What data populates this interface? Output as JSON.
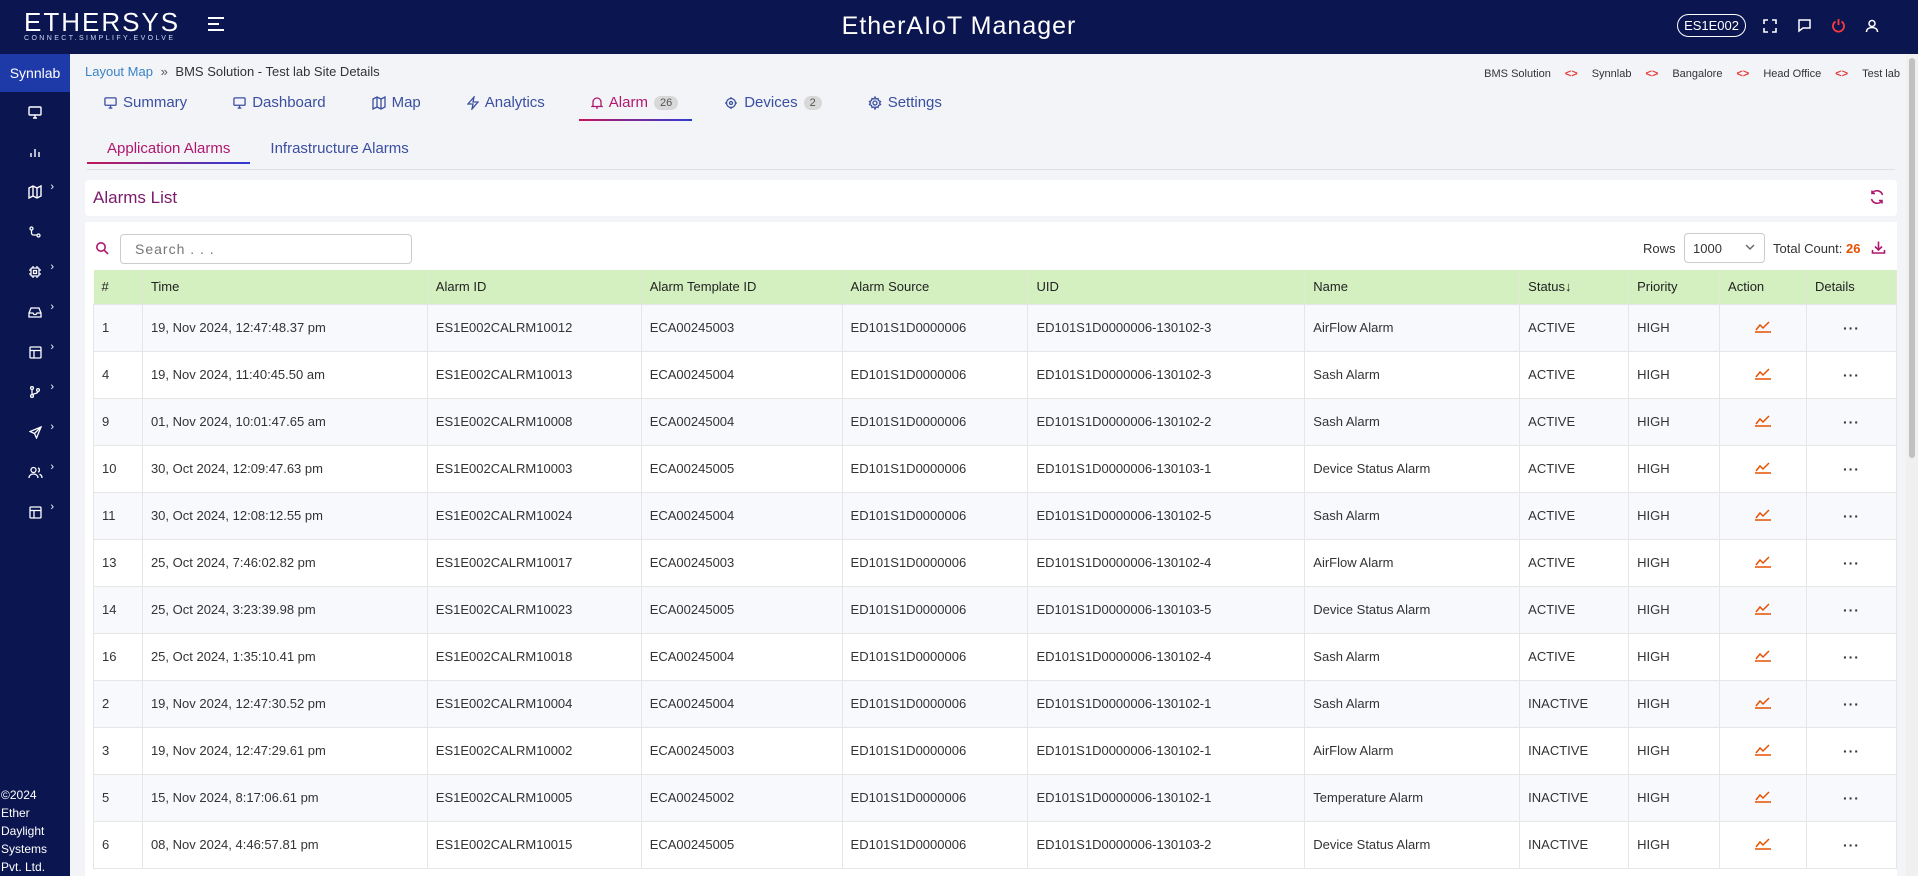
{
  "header": {
    "brand": "ETHERSYS",
    "tagline": "CONNECT.SIMPLIFY.EVOLVE",
    "app_title": "EtherAIoT Manager",
    "device": "ES1E002"
  },
  "sidebar": {
    "site": "Synnlab",
    "copyright_lines": [
      "©2024",
      "Ether",
      "Daylight",
      "Systems",
      "Pvt. Ltd."
    ]
  },
  "breadcrumb": {
    "link": "Layout Map",
    "separator": "»",
    "current": "BMS Solution - Test lab Site Details"
  },
  "hierarchy": {
    "separator": "<>",
    "items": [
      "BMS Solution",
      "Synnlab",
      "Bangalore",
      "Head Office",
      "Test lab"
    ]
  },
  "tabs": [
    {
      "label": "Summary"
    },
    {
      "label": "Dashboard"
    },
    {
      "label": "Map"
    },
    {
      "label": "Analytics"
    },
    {
      "label": "Alarm",
      "count": "26"
    },
    {
      "label": "Devices",
      "count": "2"
    },
    {
      "label": "Settings"
    }
  ],
  "subtabs": [
    "Application Alarms",
    "Infrastructure Alarms"
  ],
  "panel": {
    "title": "Alarms List",
    "search_placeholder": "Search . . .",
    "rows_label": "Rows",
    "rows_value": "1000",
    "total_label": "Total Count:",
    "total_value": "26"
  },
  "table": {
    "headers": [
      "#",
      "Time",
      "Alarm ID",
      "Alarm Template ID",
      "Alarm Source",
      "UID",
      "Name",
      "Status",
      "Priority",
      "Action",
      "Details"
    ],
    "sort_indicator": "↓",
    "rows": [
      {
        "n": "1",
        "time": "19, Nov 2024, 12:47:48.37 pm",
        "alarm_id": "ES1E002CALRM10012",
        "template": "ECA00245003",
        "source": "ED101S1D0000006",
        "uid": "ED101S1D0000006-130102-3",
        "name": "AirFlow Alarm",
        "status": "ACTIVE",
        "priority": "HIGH"
      },
      {
        "n": "4",
        "time": "19, Nov 2024, 11:40:45.50 am",
        "alarm_id": "ES1E002CALRM10013",
        "template": "ECA00245004",
        "source": "ED101S1D0000006",
        "uid": "ED101S1D0000006-130102-3",
        "name": "Sash Alarm",
        "status": "ACTIVE",
        "priority": "HIGH"
      },
      {
        "n": "9",
        "time": "01, Nov 2024, 10:01:47.65 am",
        "alarm_id": "ES1E002CALRM10008",
        "template": "ECA00245004",
        "source": "ED101S1D0000006",
        "uid": "ED101S1D0000006-130102-2",
        "name": "Sash Alarm",
        "status": "ACTIVE",
        "priority": "HIGH"
      },
      {
        "n": "10",
        "time": "30, Oct 2024, 12:09:47.63 pm",
        "alarm_id": "ES1E002CALRM10003",
        "template": "ECA00245005",
        "source": "ED101S1D0000006",
        "uid": "ED101S1D0000006-130103-1",
        "name": "Device Status Alarm",
        "status": "ACTIVE",
        "priority": "HIGH"
      },
      {
        "n": "11",
        "time": "30, Oct 2024, 12:08:12.55 pm",
        "alarm_id": "ES1E002CALRM10024",
        "template": "ECA00245004",
        "source": "ED101S1D0000006",
        "uid": "ED101S1D0000006-130102-5",
        "name": "Sash Alarm",
        "status": "ACTIVE",
        "priority": "HIGH"
      },
      {
        "n": "13",
        "time": "25, Oct 2024, 7:46:02.82 pm",
        "alarm_id": "ES1E002CALRM10017",
        "template": "ECA00245003",
        "source": "ED101S1D0000006",
        "uid": "ED101S1D0000006-130102-4",
        "name": "AirFlow Alarm",
        "status": "ACTIVE",
        "priority": "HIGH"
      },
      {
        "n": "14",
        "time": "25, Oct 2024, 3:23:39.98 pm",
        "alarm_id": "ES1E002CALRM10023",
        "template": "ECA00245005",
        "source": "ED101S1D0000006",
        "uid": "ED101S1D0000006-130103-5",
        "name": "Device Status Alarm",
        "status": "ACTIVE",
        "priority": "HIGH"
      },
      {
        "n": "16",
        "time": "25, Oct 2024, 1:35:10.41 pm",
        "alarm_id": "ES1E002CALRM10018",
        "template": "ECA00245004",
        "source": "ED101S1D0000006",
        "uid": "ED101S1D0000006-130102-4",
        "name": "Sash Alarm",
        "status": "ACTIVE",
        "priority": "HIGH"
      },
      {
        "n": "2",
        "time": "19, Nov 2024, 12:47:30.52 pm",
        "alarm_id": "ES1E002CALRM10004",
        "template": "ECA00245004",
        "source": "ED101S1D0000006",
        "uid": "ED101S1D0000006-130102-1",
        "name": "Sash Alarm",
        "status": "INACTIVE",
        "priority": "HIGH"
      },
      {
        "n": "3",
        "time": "19, Nov 2024, 12:47:29.61 pm",
        "alarm_id": "ES1E002CALRM10002",
        "template": "ECA00245003",
        "source": "ED101S1D0000006",
        "uid": "ED101S1D0000006-130102-1",
        "name": "AirFlow Alarm",
        "status": "INACTIVE",
        "priority": "HIGH"
      },
      {
        "n": "5",
        "time": "15, Nov 2024, 8:17:06.61 pm",
        "alarm_id": "ES1E002CALRM10005",
        "template": "ECA00245002",
        "source": "ED101S1D0000006",
        "uid": "ED101S1D0000006-130102-1",
        "name": "Temperature Alarm",
        "status": "INACTIVE",
        "priority": "HIGH"
      },
      {
        "n": "6",
        "time": "08, Nov 2024, 4:46:57.81 pm",
        "alarm_id": "ES1E002CALRM10015",
        "template": "ECA00245005",
        "source": "ED101S1D0000006",
        "uid": "ED101S1D0000006-130103-2",
        "name": "Device Status Alarm",
        "status": "INACTIVE",
        "priority": "HIGH"
      }
    ],
    "details_glyph": "···"
  },
  "colors": {
    "navy": "#0b1650",
    "accent": "#b0186f",
    "active": "#e32222",
    "inactive": "#2e8b2e",
    "header_row": "#d4f0c0"
  },
  "icons": {
    "sidebar": [
      "monitor-icon",
      "bar-chart-icon",
      "map-icon",
      "route-icon",
      "chip-icon",
      "storage-icon",
      "layout-icon",
      "branch-icon",
      "send-icon",
      "users-icon",
      "table-icon"
    ]
  }
}
